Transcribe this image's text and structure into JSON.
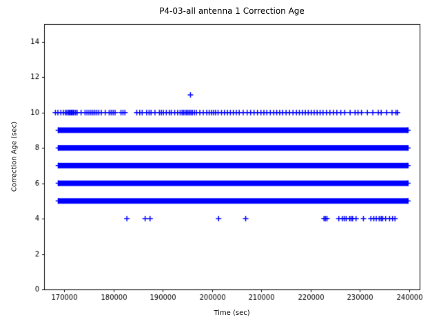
{
  "chart_data": {
    "type": "scatter",
    "title": "P4-03-all antenna 1 Correction Age",
    "xlabel": "Time (sec)",
    "ylabel": "Correction Age (sec)",
    "xlim": [
      165900,
      242100
    ],
    "ylim": [
      0,
      15
    ],
    "xticks": [
      170000,
      180000,
      190000,
      200000,
      210000,
      220000,
      230000,
      240000
    ],
    "yticks": [
      0,
      2,
      4,
      6,
      8,
      10,
      12,
      14
    ],
    "grid": false,
    "legend": "none",
    "marker": "+",
    "marker_color": "#0000FF",
    "axes_color": "#000000",
    "background_color": "#FFFFFF",
    "bands": [
      {
        "y": 5,
        "x_start": 168800,
        "x_end": 239700
      },
      {
        "y": 6,
        "x_start": 168800,
        "x_end": 239700
      },
      {
        "y": 7,
        "x_start": 168800,
        "x_end": 239700
      },
      {
        "y": 8,
        "x_start": 168800,
        "x_end": 239700
      },
      {
        "y": 9,
        "x_start": 168800,
        "x_end": 239700
      }
    ],
    "sparse_points": [
      {
        "y": 10,
        "x": [
          168200,
          168700,
          169300,
          169800,
          170200,
          170500,
          170800,
          171000,
          171200,
          171400,
          171600,
          171800,
          172000,
          172300,
          172600,
          173400,
          174200,
          174600,
          175000,
          175400,
          175800,
          176200,
          176600,
          177000,
          177500,
          178300,
          179100,
          179500,
          179900,
          180300,
          181500,
          181900,
          182300,
          184700,
          185300,
          185800,
          186700,
          187200,
          187600,
          188400,
          189300,
          189700,
          190100,
          190700,
          191300,
          191700,
          192400,
          193000,
          193500,
          193900,
          194200,
          194500,
          194800,
          195100,
          195400,
          195700,
          196000,
          196400,
          196800,
          197500,
          198200,
          198900,
          199400,
          199900,
          200300,
          200700,
          201200,
          201900,
          202500,
          203100,
          203700,
          204300,
          204900,
          205500,
          206300,
          207100,
          207800,
          208500,
          209200,
          209900,
          210500,
          211100,
          211800,
          212500,
          213100,
          213700,
          214300,
          215000,
          215700,
          216400,
          217100,
          217700,
          218300,
          218900,
          219500,
          220100,
          220700,
          221300,
          221900,
          222500,
          223200,
          223900,
          224600,
          225300,
          226100,
          226900,
          228000,
          229000,
          229600,
          230300,
          231500,
          232600,
          233700,
          234300,
          235400,
          236500,
          237300,
          237600
        ]
      },
      {
        "y": 11,
        "x": [
          195600
        ]
      },
      {
        "y": 4,
        "x": [
          182700,
          186400,
          187400,
          201300,
          206800,
          222700,
          223000,
          223300,
          225700,
          226400,
          226800,
          227200,
          227900,
          228200,
          228500,
          229200,
          230700,
          232200,
          232800,
          233300,
          233900,
          234300,
          234600,
          235200,
          236000,
          236600,
          237100
        ]
      }
    ]
  }
}
